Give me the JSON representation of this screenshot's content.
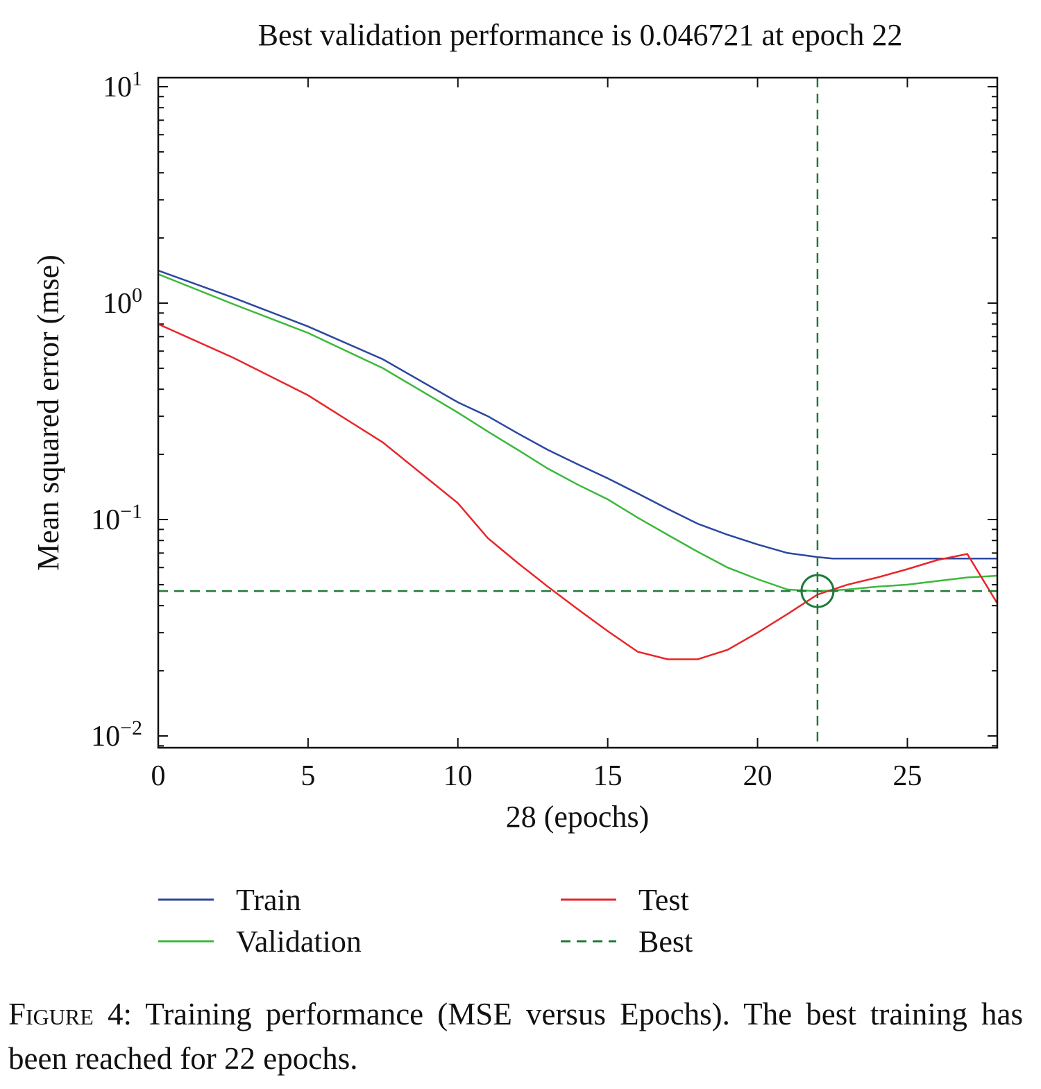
{
  "chart_data": {
    "type": "line",
    "title": "Best validation performance is 0.046721 at epoch 22",
    "xlabel": "28 (epochs)",
    "ylabel": "Mean squared error (mse)",
    "xlim": [
      0,
      28
    ],
    "ylim": [
      0.0085,
      11.5
    ],
    "yscale": "log",
    "x_ticks": [
      0,
      5,
      10,
      15,
      20,
      25
    ],
    "y_ticks": [
      {
        "base": "10",
        "exp": "1"
      },
      {
        "base": "10",
        "exp": "0"
      },
      {
        "base": "10",
        "exp": "−1"
      },
      {
        "base": "10",
        "exp": "−2"
      }
    ],
    "grid": false,
    "legend_placement": "bottom",
    "series": [
      {
        "name": "Train",
        "color": "#2b47a0",
        "style": "solid",
        "x": [
          0,
          2.5,
          5,
          7.5,
          10,
          11,
          12,
          13,
          14,
          15,
          16,
          17,
          18,
          19,
          20,
          21,
          22,
          22.5,
          25,
          27,
          28
        ],
        "y": [
          1.415,
          1.06,
          0.78,
          0.55,
          0.348,
          0.3,
          0.25,
          0.21,
          0.18,
          0.155,
          0.132,
          0.112,
          0.0957,
          0.085,
          0.0767,
          0.07,
          0.0671,
          0.066,
          0.066,
          0.066,
          0.066
        ]
      },
      {
        "name": "Validation",
        "color": "#3cb83c",
        "style": "solid",
        "x": [
          0,
          2.5,
          5,
          7.5,
          10,
          11,
          12,
          13,
          14,
          15,
          16,
          17,
          18,
          19,
          20,
          21,
          22,
          23,
          24,
          25,
          26,
          27,
          28
        ],
        "y": [
          1.36,
          0.99,
          0.728,
          0.5,
          0.312,
          0.255,
          0.21,
          0.172,
          0.145,
          0.124,
          0.102,
          0.085,
          0.071,
          0.06,
          0.053,
          0.0475,
          0.0467,
          0.0475,
          0.049,
          0.05,
          0.052,
          0.054,
          0.055
        ]
      },
      {
        "name": "Test",
        "color": "#e8262a",
        "style": "solid",
        "x": [
          0,
          2.5,
          5,
          7.5,
          10,
          11,
          12,
          13,
          14,
          15,
          16,
          17,
          18,
          19,
          20,
          21,
          22,
          23,
          24,
          25,
          26,
          27,
          28
        ],
        "y": [
          0.8,
          0.56,
          0.375,
          0.227,
          0.119,
          0.082,
          0.063,
          0.049,
          0.0385,
          0.0305,
          0.0245,
          0.0226,
          0.0226,
          0.025,
          0.03,
          0.0366,
          0.045,
          0.05,
          0.054,
          0.059,
          0.065,
          0.0693,
          0.041
        ]
      },
      {
        "name": "Best",
        "color": "#1f7a3a",
        "style": "dashed",
        "x_best": 22,
        "y_best": 0.046721
      }
    ]
  },
  "caption": {
    "label": "Figure 4:",
    "text": " Training performance (MSE versus Epochs). The best training has been reached for 22 epochs."
  }
}
